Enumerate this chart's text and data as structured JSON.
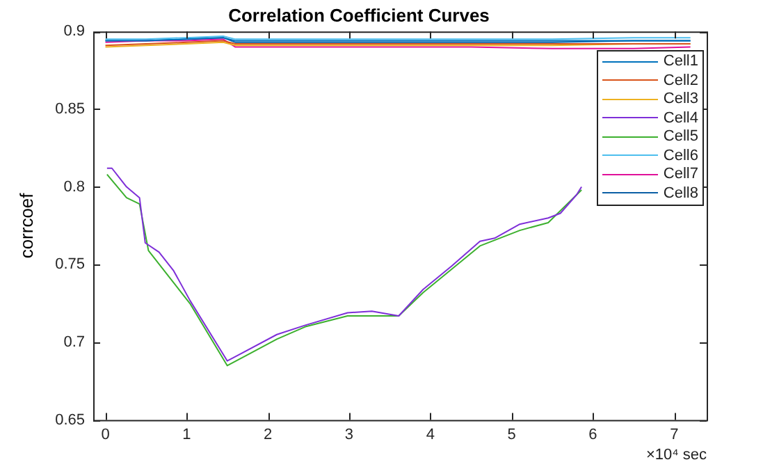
{
  "chart_data": {
    "type": "line",
    "title": "Correlation Coefficient Curves",
    "ylabel": "corrcoef",
    "xlabel": "×10⁴ sec",
    "xlim": [
      -0.15,
      7.4
    ],
    "ylim": [
      0.65,
      0.9
    ],
    "xticks": [
      0,
      1,
      2,
      3,
      4,
      5,
      6,
      7
    ],
    "yticks": [
      0.65,
      0.7,
      0.75,
      0.8,
      0.85,
      0.9
    ],
    "grid": false,
    "legend": "top right",
    "marker": "none",
    "line_style": "solid",
    "series": [
      {
        "name": "Cell1",
        "color": "#0072bd",
        "x": [
          0,
          0.5,
          1.0,
          1.45,
          1.6,
          2.5,
          3.5,
          4.5,
          5.5,
          6.5,
          7.2
        ],
        "values": [
          0.894,
          0.894,
          0.895,
          0.896,
          0.894,
          0.894,
          0.894,
          0.894,
          0.894,
          0.894,
          0.894
        ]
      },
      {
        "name": "Cell2",
        "color": "#d95319",
        "x": [
          0,
          0.5,
          1.0,
          1.45,
          1.6,
          2.5,
          3.5,
          4.5,
          5.5,
          6.5,
          7.2
        ],
        "values": [
          0.891,
          0.892,
          0.893,
          0.894,
          0.892,
          0.892,
          0.892,
          0.892,
          0.892,
          0.892,
          0.892
        ]
      },
      {
        "name": "Cell3",
        "color": "#edb120",
        "x": [
          0,
          0.5,
          1.0,
          1.45,
          1.6,
          2.5,
          3.5,
          4.5,
          5.5,
          6.5,
          7.2
        ],
        "values": [
          0.89,
          0.891,
          0.892,
          0.893,
          0.891,
          0.891,
          0.891,
          0.891,
          0.891,
          0.892,
          0.892
        ]
      },
      {
        "name": "Cell4",
        "color": "#7e2fd8",
        "x": [
          0.02,
          0.08,
          0.26,
          0.42,
          0.49,
          0.66,
          0.84,
          1.04,
          1.5,
          2.11,
          2.46,
          2.98,
          3.28,
          3.61,
          3.91,
          4.26,
          4.61,
          4.79,
          5.1,
          5.45,
          5.6,
          5.8,
          5.86
        ],
        "values": [
          0.812,
          0.812,
          0.8,
          0.793,
          0.764,
          0.758,
          0.746,
          0.727,
          0.688,
          0.705,
          0.711,
          0.719,
          0.72,
          0.717,
          0.734,
          0.749,
          0.765,
          0.767,
          0.776,
          0.78,
          0.783,
          0.795,
          0.8
        ]
      },
      {
        "name": "Cell5",
        "color": "#3cb02e",
        "x": [
          0.02,
          0.26,
          0.42,
          0.53,
          1.04,
          1.5,
          2.11,
          2.46,
          2.98,
          3.61,
          3.91,
          4.26,
          4.61,
          5.1,
          5.45,
          5.86
        ],
        "values": [
          0.808,
          0.793,
          0.789,
          0.759,
          0.725,
          0.685,
          0.702,
          0.71,
          0.717,
          0.717,
          0.732,
          0.747,
          0.762,
          0.772,
          0.777,
          0.798
        ]
      },
      {
        "name": "Cell6",
        "color": "#4dbeee",
        "x": [
          0,
          0.5,
          1.0,
          1.45,
          1.6,
          2.5,
          3.5,
          4.5,
          5.5,
          6.5,
          7.2
        ],
        "values": [
          0.895,
          0.895,
          0.896,
          0.897,
          0.895,
          0.895,
          0.895,
          0.895,
          0.895,
          0.896,
          0.896
        ]
      },
      {
        "name": "Cell7",
        "color": "#e0119a",
        "x": [
          0,
          0.5,
          1.0,
          1.45,
          1.6,
          2.5,
          3.5,
          4.5,
          5.5,
          6.5,
          7.2
        ],
        "values": [
          0.893,
          0.894,
          0.894,
          0.895,
          0.89,
          0.89,
          0.89,
          0.89,
          0.889,
          0.889,
          0.89
        ]
      },
      {
        "name": "Cell8",
        "color": "#0b5fa5",
        "x": [
          0,
          0.5,
          1.0,
          1.45,
          1.6,
          2.5,
          3.5,
          4.5,
          5.5,
          6.5,
          7.2
        ],
        "values": [
          0.894,
          0.894,
          0.895,
          0.896,
          0.893,
          0.893,
          0.893,
          0.893,
          0.893,
          0.894,
          0.894
        ]
      }
    ]
  }
}
